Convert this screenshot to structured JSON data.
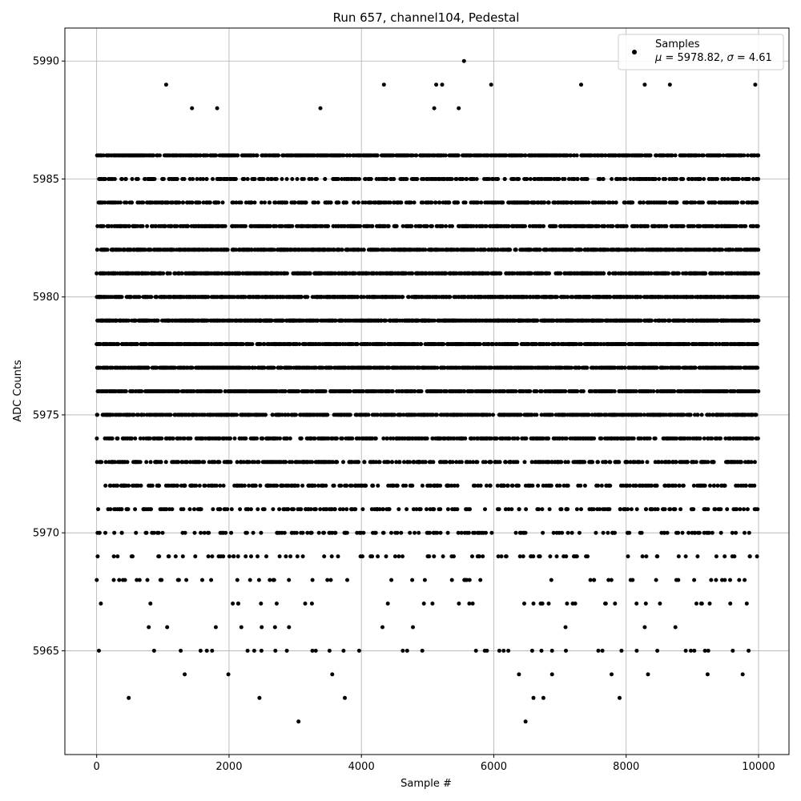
{
  "chart_data": {
    "type": "scatter",
    "title": "Run 657, channel104, Pedestal",
    "xlabel": "Sample #",
    "ylabel": "ADC Counts",
    "xlim": [
      -480,
      10460
    ],
    "ylim": [
      5960.6,
      5991.4
    ],
    "xticks": [
      0,
      2000,
      4000,
      6000,
      8000,
      10000
    ],
    "yticks": [
      5965,
      5970,
      5975,
      5980,
      5985,
      5990
    ],
    "grid": true,
    "legend_position": "top-right",
    "legend": {
      "marker_color": "#000000",
      "line1": "Samples",
      "line2_parts": [
        "μ",
        " = 5978.82, ",
        "σ",
        " = 4.61"
      ]
    },
    "series": [
      {
        "name": "Samples",
        "color": "#000000",
        "n_samples": 10000,
        "x_start": 0,
        "x_step": 1,
        "mean": 5978.82,
        "std": 4.61,
        "value_min": 5962,
        "value_max": 5990,
        "points": [
          [
            485,
            5963
          ],
          [
            1050,
            5989
          ],
          [
            1440,
            5988
          ],
          [
            1820,
            5988
          ],
          [
            1330,
            5964
          ],
          [
            1990,
            5964
          ],
          [
            2460,
            5963
          ],
          [
            3050,
            5962
          ],
          [
            3380,
            5988
          ],
          [
            3560,
            5964
          ],
          [
            3750,
            5963
          ],
          [
            4340,
            5989
          ],
          [
            5130,
            5989
          ],
          [
            5220,
            5989
          ],
          [
            5100,
            5988
          ],
          [
            5470,
            5988
          ],
          [
            5550,
            5990
          ],
          [
            5960,
            5989
          ],
          [
            6480,
            5962
          ],
          [
            6380,
            5964
          ],
          [
            6880,
            5964
          ],
          [
            6600,
            5963
          ],
          [
            6750,
            5963
          ],
          [
            7320,
            5989
          ],
          [
            7780,
            5964
          ],
          [
            7900,
            5963
          ],
          [
            8280,
            5989
          ],
          [
            8660,
            5989
          ],
          [
            8330,
            5964
          ],
          [
            9230,
            5964
          ],
          [
            9760,
            5964
          ],
          [
            9950,
            5989
          ],
          [
            1570,
            5965
          ],
          [
            2280,
            5965
          ],
          [
            2490,
            5965
          ],
          [
            2700,
            5965
          ],
          [
            3310,
            5965
          ],
          [
            3730,
            5965
          ],
          [
            4920,
            5965
          ],
          [
            6220,
            5965
          ],
          [
            6580,
            5965
          ],
          [
            6880,
            5965
          ],
          [
            7090,
            5965
          ],
          [
            7580,
            5965
          ],
          [
            7930,
            5965
          ],
          [
            8160,
            5965
          ],
          [
            8470,
            5965
          ],
          [
            8900,
            5965
          ],
          [
            9610,
            5965
          ],
          [
            9850,
            5965
          ]
        ]
      }
    ]
  }
}
